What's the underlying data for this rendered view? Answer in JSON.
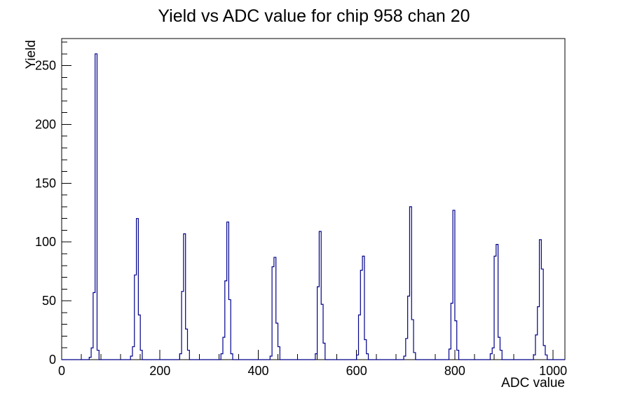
{
  "window": {
    "background": "#ffffff"
  },
  "chart_data": {
    "type": "bar",
    "title": "Yield vs ADC value for chip 958 chan 20",
    "xlabel": "ADC value",
    "ylabel": "Yield",
    "xlim": [
      0,
      1024
    ],
    "ylim": [
      0,
      273
    ],
    "x_major_ticks": [
      0,
      200,
      400,
      600,
      800,
      1000
    ],
    "x_minor_step": 40,
    "y_major_ticks": [
      0,
      50,
      100,
      150,
      200,
      250
    ],
    "y_minor_step": 10,
    "grid": false,
    "legend": false,
    "line_color": "#00008b",
    "frame_color": "#000000",
    "bin_width": 4,
    "bins": [
      [
        56,
        2
      ],
      [
        60,
        10
      ],
      [
        64,
        57
      ],
      [
        68,
        260
      ],
      [
        72,
        8
      ],
      [
        140,
        3
      ],
      [
        144,
        11
      ],
      [
        148,
        72
      ],
      [
        152,
        120
      ],
      [
        156,
        38
      ],
      [
        160,
        8
      ],
      [
        240,
        5
      ],
      [
        244,
        58
      ],
      [
        248,
        107
      ],
      [
        252,
        26
      ],
      [
        256,
        8
      ],
      [
        324,
        5
      ],
      [
        328,
        19
      ],
      [
        332,
        67
      ],
      [
        336,
        117
      ],
      [
        340,
        51
      ],
      [
        344,
        5
      ],
      [
        424,
        3
      ],
      [
        428,
        79
      ],
      [
        432,
        87
      ],
      [
        436,
        31
      ],
      [
        440,
        11
      ],
      [
        516,
        5
      ],
      [
        520,
        62
      ],
      [
        524,
        109
      ],
      [
        528,
        47
      ],
      [
        532,
        14
      ],
      [
        600,
        4
      ],
      [
        604,
        38
      ],
      [
        608,
        76
      ],
      [
        612,
        88
      ],
      [
        616,
        17
      ],
      [
        620,
        5
      ],
      [
        696,
        3
      ],
      [
        700,
        18
      ],
      [
        704,
        54
      ],
      [
        708,
        130
      ],
      [
        712,
        34
      ],
      [
        716,
        6
      ],
      [
        788,
        9
      ],
      [
        792,
        48
      ],
      [
        796,
        127
      ],
      [
        800,
        33
      ],
      [
        804,
        8
      ],
      [
        872,
        5
      ],
      [
        876,
        10
      ],
      [
        880,
        88
      ],
      [
        884,
        98
      ],
      [
        888,
        19
      ],
      [
        892,
        8
      ],
      [
        960,
        4
      ],
      [
        964,
        21
      ],
      [
        968,
        45
      ],
      [
        972,
        102
      ],
      [
        976,
        77
      ],
      [
        980,
        12
      ],
      [
        984,
        4
      ]
    ],
    "peaks": [
      {
        "adc": 70,
        "yield": 260
      },
      {
        "adc": 154,
        "yield": 120
      },
      {
        "adc": 250,
        "yield": 107
      },
      {
        "adc": 338,
        "yield": 117
      },
      {
        "adc": 434,
        "yield": 87
      },
      {
        "adc": 526,
        "yield": 109
      },
      {
        "adc": 614,
        "yield": 88
      },
      {
        "adc": 710,
        "yield": 130
      },
      {
        "adc": 798,
        "yield": 127
      },
      {
        "adc": 886,
        "yield": 98
      },
      {
        "adc": 974,
        "yield": 102
      }
    ]
  }
}
